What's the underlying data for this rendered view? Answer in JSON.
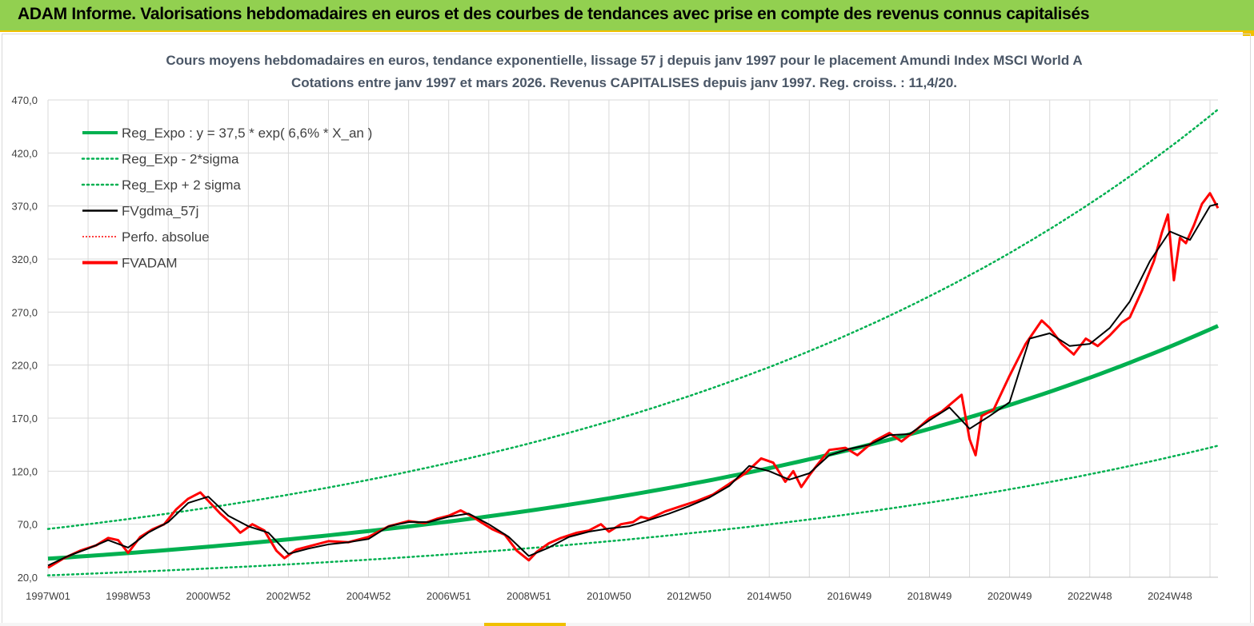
{
  "header": {
    "title": "ADAM Informe. Valorisations hebdomadaires en euros et des courbes de tendances avec prise en compte des revenus connus capitalisés"
  },
  "colors": {
    "header_bg": "#92d050",
    "accent": "#f0c000",
    "trend": "#00b050",
    "smooth": "#000000",
    "price": "#ff0000",
    "grid": "#d9d9d9"
  },
  "chart_data": {
    "type": "line",
    "title": "Cours moyens hebdomadaires en euros, tendance exponentielle, lissage 57 j depuis janv 1997  pour le placement Amundi Index MSCI World A",
    "subtitle": "Cotations entre janv 1997 et mars 2026. Revenus CAPITALISES  depuis janv 1997. Reg. croiss. : 11,4/20.",
    "x_start": 1997.0,
    "x_end": 2026.2,
    "ylim": [
      20,
      470
    ],
    "yticks": [
      "20,0",
      "70,0",
      "120,0",
      "170,0",
      "220,0",
      "270,0",
      "320,0",
      "370,0",
      "420,0",
      "470,0"
    ],
    "xticks": [
      {
        "label": "1997W01",
        "x": 1997.0
      },
      {
        "label": "1998W53",
        "x": 1999.0
      },
      {
        "label": "2000W52",
        "x": 2001.0
      },
      {
        "label": "2002W52",
        "x": 2003.0
      },
      {
        "label": "2004W52",
        "x": 2005.0
      },
      {
        "label": "2006W51",
        "x": 2007.0
      },
      {
        "label": "2008W51",
        "x": 2009.0
      },
      {
        "label": "2010W50",
        "x": 2011.0
      },
      {
        "label": "2012W50",
        "x": 2013.0
      },
      {
        "label": "2014W50",
        "x": 2015.0
      },
      {
        "label": "2016W49",
        "x": 2017.0
      },
      {
        "label": "2018W49",
        "x": 2019.0
      },
      {
        "label": "2020W49",
        "x": 2021.0
      },
      {
        "label": "2022W48",
        "x": 2023.0
      },
      {
        "label": "2024W48",
        "x": 2025.0
      }
    ],
    "grid": true,
    "legend_position": "top-left",
    "legend": [
      {
        "label": "Reg_Expo : y = 37,5 * exp( 6,6% *  X_an )",
        "style": "solid-thick",
        "color": "#00b050"
      },
      {
        "label": "Reg_Exp - 2*sigma",
        "style": "dotted",
        "color": "#00b050"
      },
      {
        "label": "Reg_Exp + 2 sigma",
        "style": "dotted",
        "color": "#00b050"
      },
      {
        "label": "FVgdma_57j",
        "style": "solid",
        "color": "#000000"
      },
      {
        "label": "Perfo. absolue",
        "style": "dotted-thin",
        "color": "#ff0000"
      },
      {
        "label": "FVADAM",
        "style": "solid-thick",
        "color": "#ff0000"
      }
    ],
    "series": [
      {
        "name": "Reg_Expo : y = 37,5 * exp( 6,6% *  X_an )",
        "style": "trend",
        "x": [
          1997.0,
          2026.2
        ],
        "y": [
          37.5,
          257.0
        ]
      },
      {
        "name": "Reg_Exp - 2*sigma",
        "style": "lower",
        "x": [
          1997.0,
          2026.2
        ],
        "y": [
          21.8,
          144.0
        ]
      },
      {
        "name": "Reg_Exp + 2 sigma",
        "style": "upper",
        "x": [
          1997.0,
          2026.2
        ],
        "y": [
          65.5,
          461.0
        ]
      },
      {
        "name": "FVADAM",
        "style": "price",
        "x": [
          1997.0,
          1997.4,
          1997.8,
          1998.2,
          1998.5,
          1998.75,
          1999.0,
          1999.3,
          1999.6,
          1999.9,
          2000.2,
          2000.5,
          2000.8,
          2001.0,
          2001.3,
          2001.6,
          2001.8,
          2002.1,
          2002.4,
          2002.7,
          2002.9,
          2003.2,
          2003.6,
          2004.0,
          2004.5,
          2005.0,
          2005.5,
          2006.0,
          2006.4,
          2006.7,
          2007.0,
          2007.3,
          2007.6,
          2007.8,
          2008.1,
          2008.4,
          2008.7,
          2009.0,
          2009.2,
          2009.5,
          2009.8,
          2010.2,
          2010.5,
          2010.8,
          2011.0,
          2011.3,
          2011.6,
          2011.8,
          2012.0,
          2012.4,
          2012.8,
          2013.2,
          2013.6,
          2014.0,
          2014.4,
          2014.8,
          2015.1,
          2015.4,
          2015.6,
          2015.8,
          2016.0,
          2016.2,
          2016.5,
          2016.9,
          2017.2,
          2017.6,
          2018.0,
          2018.3,
          2018.7,
          2019.0,
          2019.3,
          2019.8,
          2020.0,
          2020.15,
          2020.3,
          2020.6,
          2021.0,
          2021.4,
          2021.8,
          2022.0,
          2022.3,
          2022.6,
          2022.9,
          2023.2,
          2023.5,
          2023.8,
          2024.0,
          2024.3,
          2024.6,
          2024.8,
          2024.95,
          2025.1,
          2025.25,
          2025.4,
          2025.6,
          2025.8,
          2026.0,
          2026.2
        ],
        "y": [
          29,
          38,
          45,
          50,
          57,
          55,
          43,
          58,
          65,
          70,
          84,
          94,
          100,
          92,
          80,
          70,
          62,
          70,
          64,
          45,
          38,
          46,
          50,
          54,
          53,
          58,
          68,
          73,
          71,
          75,
          78,
          83,
          77,
          72,
          65,
          60,
          45,
          36,
          44,
          52,
          57,
          62,
          64,
          70,
          63,
          70,
          72,
          77,
          75,
          82,
          87,
          92,
          98,
          108,
          118,
          132,
          128,
          110,
          120,
          105,
          116,
          126,
          140,
          142,
          135,
          148,
          156,
          148,
          160,
          170,
          176,
          192,
          150,
          135,
          172,
          178,
          210,
          240,
          262,
          255,
          240,
          230,
          245,
          238,
          248,
          260,
          265,
          290,
          318,
          345,
          362,
          300,
          340,
          335,
          352,
          372,
          382,
          368
        ]
      },
      {
        "name": "FVgdma_57j",
        "style": "smooth",
        "x": [
          1997.0,
          1997.5,
          1998.0,
          1998.5,
          1999.0,
          1999.5,
          2000.0,
          2000.5,
          2001.0,
          2001.5,
          2002.0,
          2002.5,
          2003.0,
          2003.5,
          2004.0,
          2004.5,
          2005.0,
          2005.5,
          2006.0,
          2006.5,
          2007.0,
          2007.5,
          2008.0,
          2008.5,
          2009.0,
          2009.5,
          2010.0,
          2010.5,
          2011.0,
          2011.5,
          2012.0,
          2012.5,
          2013.0,
          2013.5,
          2014.0,
          2014.5,
          2015.0,
          2015.5,
          2016.0,
          2016.5,
          2017.0,
          2017.5,
          2018.0,
          2018.5,
          2019.0,
          2019.5,
          2020.0,
          2020.5,
          2021.0,
          2021.5,
          2022.0,
          2022.5,
          2023.0,
          2023.5,
          2024.0,
          2024.5,
          2025.0,
          2025.5,
          2026.0,
          2026.2
        ],
        "y": [
          31,
          40,
          47,
          55,
          48,
          62,
          72,
          90,
          96,
          78,
          68,
          62,
          42,
          47,
          51,
          53,
          56,
          68,
          72,
          72,
          77,
          80,
          70,
          58,
          40,
          48,
          58,
          63,
          66,
          68,
          74,
          80,
          87,
          95,
          106,
          125,
          120,
          112,
          118,
          135,
          141,
          145,
          154,
          155,
          168,
          180,
          160,
          172,
          185,
          245,
          250,
          238,
          240,
          255,
          280,
          318,
          346,
          338,
          370,
          372
        ]
      }
    ]
  }
}
